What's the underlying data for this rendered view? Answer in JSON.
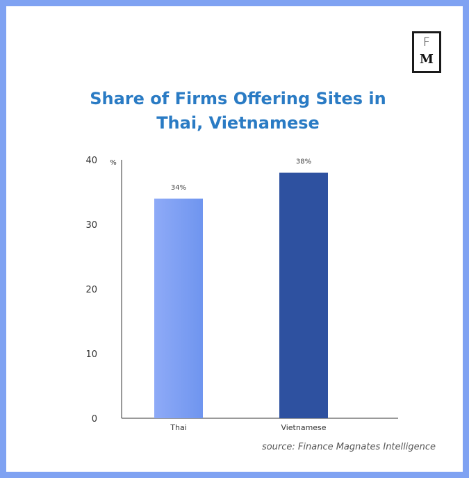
{
  "logo": {
    "top_letter": "F",
    "bottom_letter": "M"
  },
  "title_lines": [
    "Share of Firms Offering Sites in",
    "Thai, Vietnamese"
  ],
  "source": "source: Finance Magnates Intelligence",
  "chart_data": {
    "type": "bar",
    "title": "Share of Firms Offering Sites in Thai, Vietnamese",
    "categories": [
      "Thai",
      "Vietnamese"
    ],
    "values": [
      34,
      38
    ],
    "data_labels": [
      "34%",
      "38%"
    ],
    "unit_label": "%",
    "xlabel": "",
    "ylabel": "",
    "ylim": [
      0,
      40
    ],
    "yticks": [
      0,
      10,
      20,
      30,
      40
    ],
    "grid": false,
    "legend": "none",
    "colors": [
      "#7fa2f2",
      "#2e51a0"
    ]
  }
}
